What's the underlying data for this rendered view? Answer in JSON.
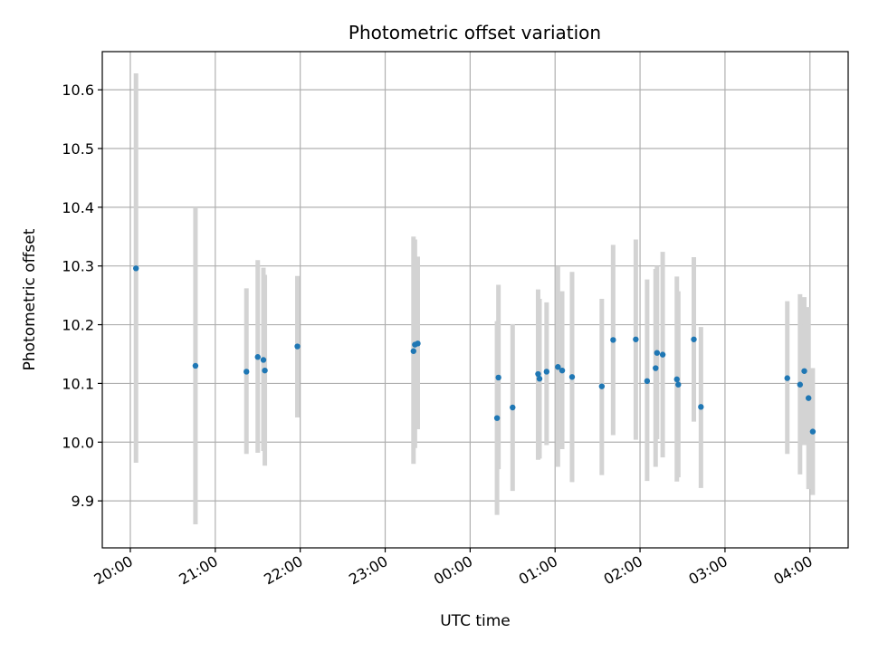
{
  "chart_data": {
    "type": "scatter",
    "title": "Photometric offset variation",
    "xlabel": "UTC time",
    "ylabel": "Photometric offset",
    "x_axis_kind": "time",
    "x_range_hours": [
      19.67,
      28.45
    ],
    "xticks": [
      {
        "h": 20,
        "label": "20:00"
      },
      {
        "h": 21,
        "label": "21:00"
      },
      {
        "h": 22,
        "label": "22:00"
      },
      {
        "h": 23,
        "label": "23:00"
      },
      {
        "h": 24,
        "label": "00:00"
      },
      {
        "h": 25,
        "label": "01:00"
      },
      {
        "h": 26,
        "label": "02:00"
      },
      {
        "h": 27,
        "label": "03:00"
      },
      {
        "h": 28,
        "label": "04:00"
      }
    ],
    "ylim": [
      9.82,
      10.665
    ],
    "yticks": [
      {
        "v": 9.9,
        "label": "9.9"
      },
      {
        "v": 10.0,
        "label": "10.0"
      },
      {
        "v": 10.1,
        "label": "10.1"
      },
      {
        "v": 10.2,
        "label": "10.2"
      },
      {
        "v": 10.3,
        "label": "10.3"
      },
      {
        "v": 10.4,
        "label": "10.4"
      },
      {
        "v": 10.5,
        "label": "10.5"
      },
      {
        "v": 10.6,
        "label": "10.6"
      }
    ],
    "grid": true,
    "point_color": "#1f77b4",
    "errorbar_color": "#d3d3d3",
    "points": [
      {
        "time": "20:04",
        "y": 10.296,
        "err_low": 9.965,
        "err_high": 10.628
      },
      {
        "time": "20:46",
        "y": 10.13,
        "err_low": 9.86,
        "err_high": 10.4
      },
      {
        "time": "21:22",
        "y": 10.12,
        "err_low": 9.98,
        "err_high": 10.262
      },
      {
        "time": "21:30",
        "y": 10.145,
        "err_low": 9.982,
        "err_high": 10.31
      },
      {
        "time": "21:34",
        "y": 10.14,
        "err_low": 9.985,
        "err_high": 10.297
      },
      {
        "time": "21:35",
        "y": 10.122,
        "err_low": 9.96,
        "err_high": 10.285
      },
      {
        "time": "21:58",
        "y": 10.163,
        "err_low": 10.042,
        "err_high": 10.283
      },
      {
        "time": "23:20",
        "y": 10.155,
        "err_low": 9.963,
        "err_high": 10.35
      },
      {
        "time": "23:21",
        "y": 10.166,
        "err_low": 9.99,
        "err_high": 10.345
      },
      {
        "time": "23:23",
        "y": 10.168,
        "err_low": 10.022,
        "err_high": 10.316
      },
      {
        "time": "00:19",
        "y": 10.041,
        "err_low": 9.876,
        "err_high": 10.206
      },
      {
        "time": "00:20",
        "y": 10.11,
        "err_low": 9.954,
        "err_high": 10.268
      },
      {
        "time": "00:30",
        "y": 10.059,
        "err_low": 9.917,
        "err_high": 10.201
      },
      {
        "time": "00:48",
        "y": 10.116,
        "err_low": 9.97,
        "err_high": 10.26
      },
      {
        "time": "00:49",
        "y": 10.108,
        "err_low": 9.972,
        "err_high": 10.244
      },
      {
        "time": "00:54",
        "y": 10.12,
        "err_low": 9.995,
        "err_high": 10.238
      },
      {
        "time": "01:02",
        "y": 10.128,
        "err_low": 9.958,
        "err_high": 10.3
      },
      {
        "time": "01:05",
        "y": 10.122,
        "err_low": 9.988,
        "err_high": 10.257
      },
      {
        "time": "01:12",
        "y": 10.111,
        "err_low": 9.932,
        "err_high": 10.29
      },
      {
        "time": "01:33",
        "y": 10.095,
        "err_low": 9.944,
        "err_high": 10.244
      },
      {
        "time": "01:41",
        "y": 10.174,
        "err_low": 10.012,
        "err_high": 10.336
      },
      {
        "time": "01:57",
        "y": 10.175,
        "err_low": 10.004,
        "err_high": 10.345
      },
      {
        "time": "02:05",
        "y": 10.104,
        "err_low": 9.934,
        "err_high": 10.277
      },
      {
        "time": "02:11",
        "y": 10.126,
        "err_low": 9.958,
        "err_high": 10.295
      },
      {
        "time": "02:12",
        "y": 10.152,
        "err_low": 10.005,
        "err_high": 10.3
      },
      {
        "time": "02:16",
        "y": 10.149,
        "err_low": 9.974,
        "err_high": 10.324
      },
      {
        "time": "02:26",
        "y": 10.107,
        "err_low": 9.933,
        "err_high": 10.282
      },
      {
        "time": "02:27",
        "y": 10.098,
        "err_low": 9.94,
        "err_high": 10.257
      },
      {
        "time": "02:38",
        "y": 10.175,
        "err_low": 10.035,
        "err_high": 10.315
      },
      {
        "time": "02:43",
        "y": 10.06,
        "err_low": 9.922,
        "err_high": 10.196
      },
      {
        "time": "03:44",
        "y": 10.109,
        "err_low": 9.98,
        "err_high": 10.24
      },
      {
        "time": "03:53",
        "y": 10.098,
        "err_low": 9.945,
        "err_high": 10.252
      },
      {
        "time": "03:56",
        "y": 10.121,
        "err_low": 9.995,
        "err_high": 10.247
      },
      {
        "time": "03:59",
        "y": 10.075,
        "err_low": 9.92,
        "err_high": 10.23
      },
      {
        "time": "04:02",
        "y": 10.018,
        "err_low": 9.91,
        "err_high": 10.126
      }
    ]
  }
}
